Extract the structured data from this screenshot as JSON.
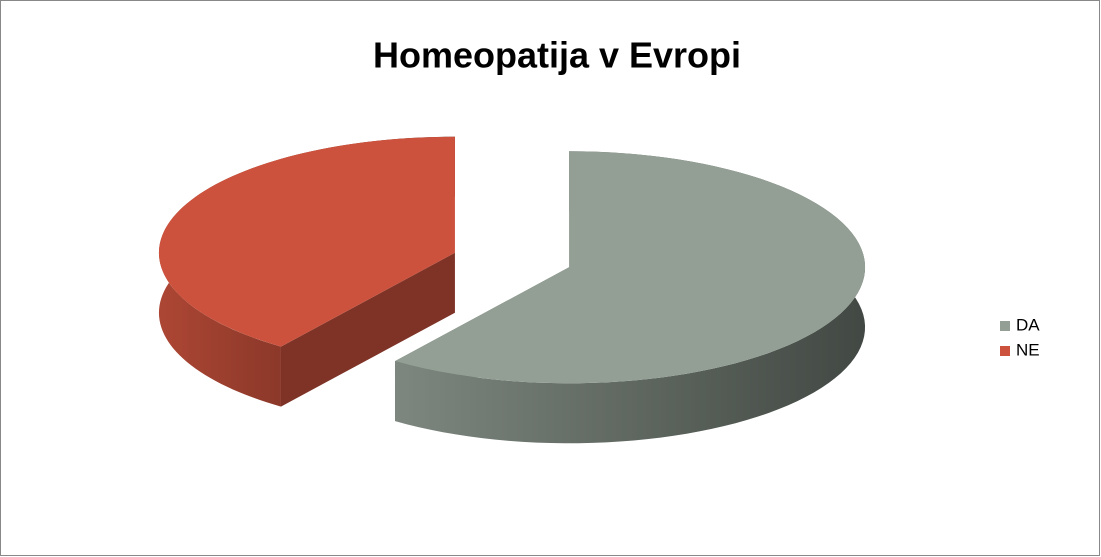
{
  "chart_data": {
    "type": "pie",
    "title": "Homeopatija v Evropi",
    "categories": [
      "DA",
      "NE"
    ],
    "values": [
      60,
      40
    ],
    "colors": [
      "#939f95",
      "#cc523d"
    ],
    "legend": "right"
  }
}
